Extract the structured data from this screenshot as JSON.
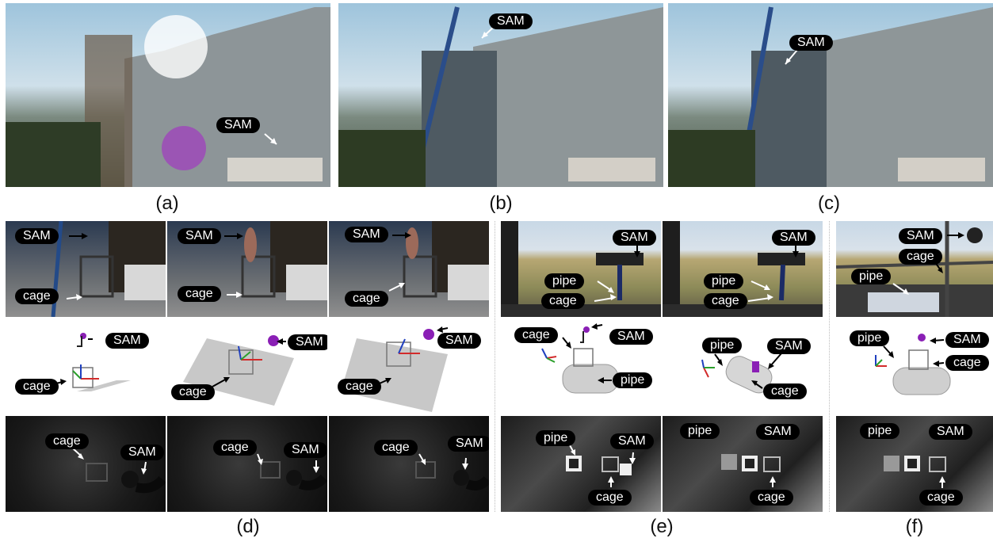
{
  "captions": [
    "(a)",
    "(b)",
    "(c)",
    "(d)",
    "(e)",
    "(f)"
  ],
  "labels": {
    "sam": "SAM",
    "cage": "cage",
    "pipe": "pipe"
  },
  "colors": {
    "tag_bg": "#000000",
    "tag_fg": "#ffffff",
    "axis_x": "#d22b2b",
    "axis_y": "#2ca02c",
    "axis_z": "#1f3fbf",
    "sam_marker": "#8a1fb5"
  }
}
